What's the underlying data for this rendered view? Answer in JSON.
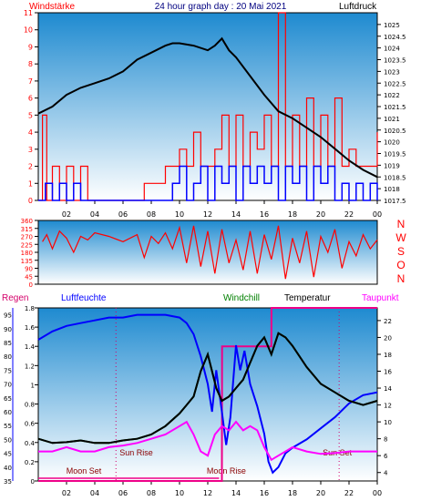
{
  "header": {
    "title": "24 hour graph day : 20 Mai 2021",
    "left_label": "Windstärke",
    "right_label": "Luftdruck"
  },
  "direction_labels": [
    "N",
    "W",
    "S",
    "O",
    "N"
  ],
  "legend": {
    "rain": "Regen",
    "humidity": "Luftfeuchte",
    "windchill": "Windchill",
    "temperature": "Temperatur",
    "dewpoint": "Taupunkt"
  },
  "colors": {
    "wind": "#ff0000",
    "gust": "#0000ff",
    "pressure": "#000000",
    "direction": "#ff0000",
    "rain": "#ee0088",
    "humidity": "#0000ff",
    "windchill": "#008000",
    "temperature": "#000000",
    "dewpoint": "#ff00ff",
    "sun": "#d4006a",
    "moon": "#8b0000",
    "title": "#000080"
  },
  "x_ticks": [
    "02",
    "04",
    "06",
    "08",
    "10",
    "12",
    "14",
    "16",
    "18",
    "20",
    "22",
    "00"
  ],
  "chart_data": [
    {
      "type": "line",
      "title": "24 hour graph day : 20 Mai 2021",
      "ylabel": "Windstärke",
      "y2label": "Luftdruck",
      "xlim": [
        0,
        24
      ],
      "ylim": [
        0,
        11
      ],
      "y2lim": [
        1017.5,
        1025.5
      ],
      "y_ticks": [
        0,
        1,
        2,
        3,
        4,
        5,
        6,
        7,
        8,
        9,
        10,
        11
      ],
      "y2_ticks": [
        "1017.5",
        "1018",
        "1018.5",
        "1019",
        "1019.5",
        "1020",
        "1020.5",
        "1021",
        "1021.5",
        "1022",
        "1022.5",
        "1023",
        "1023.5",
        "1024",
        "1024.5",
        "1025"
      ],
      "series": [
        {
          "name": "Windstärke",
          "axis": "left",
          "x": [
            0,
            0.3,
            0.6,
            1,
            1.5,
            2,
            2.5,
            3,
            3.5,
            4,
            5,
            6,
            7,
            7.5,
            8,
            9,
            9.5,
            10,
            10.5,
            11,
            11.5,
            12,
            12.5,
            13,
            13.5,
            14,
            14.5,
            15,
            15.5,
            16,
            16.5,
            17,
            17.5,
            18,
            18.5,
            19,
            19.5,
            20,
            20.5,
            21,
            21.5,
            22,
            22.5,
            23,
            23.5,
            24
          ],
          "y": [
            0,
            5,
            0,
            2,
            0,
            2,
            0,
            2,
            0,
            0,
            0,
            0,
            0,
            1,
            1,
            2,
            2,
            3,
            2,
            4,
            2,
            2,
            3,
            5,
            2,
            5,
            2,
            4,
            3,
            5,
            2,
            11,
            2,
            5,
            2,
            6,
            2,
            5,
            2,
            6,
            2,
            3,
            2,
            2,
            2,
            4
          ]
        },
        {
          "name": "Böen",
          "axis": "left",
          "x": [
            0,
            0.5,
            1,
            1.5,
            2,
            2.5,
            3,
            4,
            5,
            6,
            7,
            8,
            9,
            9.5,
            10,
            10.5,
            11,
            11.5,
            12,
            12.5,
            13,
            13.5,
            14,
            14.5,
            15,
            15.5,
            16,
            16.5,
            17,
            17.5,
            18,
            18.5,
            19,
            19.5,
            20,
            20.5,
            21,
            21.5,
            22,
            22.5,
            23,
            23.5,
            24
          ],
          "y": [
            0,
            1,
            0,
            1,
            0,
            1,
            0,
            0,
            0,
            0,
            0,
            0,
            0,
            1,
            2,
            0,
            1,
            2,
            0,
            2,
            1,
            2,
            0,
            2,
            1,
            2,
            1,
            2,
            0,
            2,
            1,
            2,
            0,
            2,
            1,
            2,
            0,
            1,
            0,
            1,
            0,
            1,
            0
          ]
        },
        {
          "name": "Luftdruck",
          "axis": "right",
          "x": [
            0,
            1,
            2,
            3,
            4,
            5,
            6,
            7,
            8,
            9,
            9.5,
            10,
            11,
            12,
            12.5,
            13,
            13.5,
            14,
            15,
            16,
            17,
            18,
            19,
            20,
            21,
            22,
            23,
            24
          ],
          "y": [
            1021.2,
            1021.5,
            1022.0,
            1022.3,
            1022.5,
            1022.7,
            1023.0,
            1023.5,
            1023.8,
            1024.1,
            1024.2,
            1024.2,
            1024.1,
            1023.9,
            1024.1,
            1024.4,
            1023.9,
            1023.6,
            1022.8,
            1022.0,
            1021.3,
            1021.0,
            1020.6,
            1020.2,
            1019.7,
            1019.2,
            1018.8,
            1018.5
          ]
        }
      ]
    },
    {
      "type": "line",
      "ylabel": "",
      "xlim": [
        0,
        24
      ],
      "ylim": [
        0,
        360
      ],
      "y_ticks": [
        0,
        45,
        90,
        135,
        180,
        225,
        270,
        315,
        360
      ],
      "series": [
        {
          "name": "Windrichtung",
          "x": [
            0.3,
            0.6,
            1,
            1.5,
            2,
            2.5,
            3,
            3.5,
            4,
            5,
            6,
            7,
            7.5,
            8,
            8.5,
            9,
            9.5,
            10,
            10.5,
            11,
            11.5,
            12,
            12.5,
            13,
            13.5,
            14,
            14.5,
            15,
            15.5,
            16,
            16.5,
            17,
            17.5,
            18,
            18.5,
            19,
            19.5,
            20,
            20.5,
            21,
            21.5,
            22,
            22.5,
            23,
            23.5,
            24
          ],
          "y": [
            240,
            280,
            200,
            300,
            260,
            180,
            270,
            250,
            290,
            270,
            240,
            280,
            150,
            270,
            230,
            290,
            200,
            320,
            120,
            330,
            100,
            300,
            60,
            310,
            120,
            250,
            80,
            300,
            60,
            280,
            140,
            330,
            30,
            260,
            120,
            300,
            40,
            270,
            180,
            310,
            90,
            240,
            160,
            280,
            200,
            250
          ]
        }
      ]
    },
    {
      "type": "line",
      "ylabel": "Regen",
      "xlim": [
        0,
        24
      ],
      "rain_ylim": [
        0,
        1.8
      ],
      "hum_ylim": [
        35,
        97.5
      ],
      "temp_ylim": [
        3,
        23.5
      ],
      "rain_ticks": [
        "0",
        "0.2",
        "0.4",
        "0.6",
        "0.8",
        "1",
        "1.2",
        "1.4",
        "1.6",
        "1.8"
      ],
      "hum_ticks": [
        35,
        40,
        45,
        50,
        55,
        60,
        65,
        70,
        75,
        80,
        85,
        90,
        95
      ],
      "temp_ticks": [
        4,
        6,
        8,
        10,
        12,
        14,
        16,
        18,
        20,
        22
      ],
      "series": [
        {
          "name": "Regen",
          "axis": "rain",
          "x": [
            0,
            13,
            13.01,
            16.5,
            16.51,
            24
          ],
          "y": [
            0,
            0,
            1.4,
            1.4,
            1.8,
            1.8
          ]
        },
        {
          "name": "Luftfeuchte",
          "axis": "humidity",
          "x": [
            0,
            1,
            2,
            3,
            4,
            5,
            6,
            7,
            8,
            9,
            10,
            10.5,
            11,
            11.5,
            12,
            12.3,
            12.6,
            13,
            13.3,
            13.6,
            14,
            14.3,
            14.6,
            15,
            15.5,
            16,
            16.3,
            16.6,
            17,
            17.5,
            18,
            19,
            20,
            21,
            22,
            23,
            24
          ],
          "y": [
            86,
            89,
            91,
            92,
            93,
            94,
            94,
            95,
            95,
            95,
            94,
            92,
            88,
            80,
            70,
            60,
            75,
            60,
            48,
            58,
            84,
            75,
            82,
            70,
            62,
            52,
            42,
            38,
            40,
            45,
            47,
            50,
            54,
            58,
            63,
            66,
            67
          ]
        },
        {
          "name": "Windchill",
          "axis": "temperature",
          "x": [
            0,
            1,
            2,
            3,
            4,
            5,
            6,
            7,
            8,
            9,
            10,
            10.5,
            11,
            11.5,
            12,
            12.3,
            12.6,
            13,
            13.5,
            14,
            14.5,
            15,
            15.5,
            16,
            16.5,
            17,
            17.5,
            18,
            19,
            20,
            21,
            22,
            23,
            24
          ],
          "y": [
            8,
            7.5,
            7.6,
            7.8,
            7.5,
            7.5,
            7.8,
            8,
            8.5,
            9.5,
            11,
            12,
            13,
            16,
            18,
            16,
            14,
            12.5,
            13,
            14,
            15,
            17,
            19,
            20,
            18,
            20.5,
            20,
            19,
            16.5,
            14.5,
            13.5,
            12.5,
            12,
            12.5
          ]
        },
        {
          "name": "Temperatur",
          "axis": "temperature",
          "x": [
            0,
            1,
            2,
            3,
            4,
            5,
            6,
            7,
            8,
            9,
            10,
            10.5,
            11,
            11.5,
            12,
            12.3,
            12.6,
            13,
            13.5,
            14,
            14.5,
            15,
            15.5,
            16,
            16.5,
            17,
            17.5,
            18,
            19,
            20,
            21,
            22,
            23,
            24
          ],
          "y": [
            8,
            7.5,
            7.6,
            7.8,
            7.5,
            7.5,
            7.8,
            8,
            8.5,
            9.5,
            11,
            12,
            13,
            16,
            18,
            16,
            14,
            12.5,
            13,
            14,
            15,
            17,
            19,
            20,
            18,
            20.5,
            20,
            19,
            16.5,
            14.5,
            13.5,
            12.5,
            12,
            12.5
          ]
        },
        {
          "name": "Taupunkt",
          "axis": "temperature",
          "x": [
            0,
            1,
            2,
            3,
            4,
            5,
            6,
            7,
            8,
            9,
            10,
            10.5,
            11,
            11.5,
            12,
            12.5,
            13,
            13.5,
            14,
            14.5,
            15,
            15.5,
            16,
            16.5,
            17,
            17.5,
            18,
            19,
            20,
            21,
            22,
            23,
            24
          ],
          "y": [
            6.5,
            6.5,
            7,
            6.5,
            6.5,
            7,
            7.2,
            7.5,
            8,
            8.5,
            9.5,
            10,
            8.5,
            6.5,
            6,
            8.5,
            9.5,
            9,
            10,
            9,
            9.5,
            9,
            7,
            5.5,
            6,
            6.5,
            7,
            6.5,
            6.2,
            6.3,
            6.5,
            6.5,
            6.5
          ]
        }
      ]
    }
  ],
  "astro": {
    "sun_rise_label": "Sun Rise",
    "sun_set_label": "Sun Set",
    "sun_rise_hour": 5.5,
    "sun_set_hour": 21.3,
    "moon_set_label": "Moon Set",
    "moon_rise_label": "Moon Rise",
    "moon_set_hour": 0,
    "moon_rise_hour": 12.8
  }
}
